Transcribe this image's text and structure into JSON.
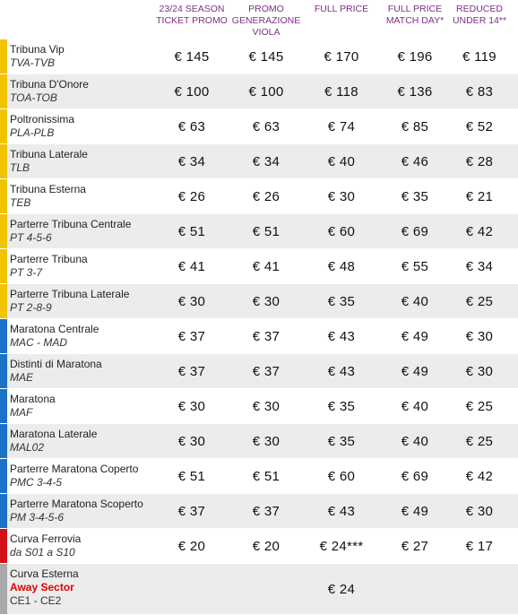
{
  "headers": [
    {
      "lines": [
        "23/24 SEASON",
        "TICKET PROMO"
      ]
    },
    {
      "lines": [
        "PROMO",
        "GENERAZIONE",
        "VIOLA"
      ]
    },
    {
      "lines": [
        "FULL PRICE"
      ]
    },
    {
      "lines": [
        "FULL PRICE",
        "MATCH DAY*"
      ]
    },
    {
      "lines": [
        "REDUCED",
        "UNDER 14**"
      ]
    }
  ],
  "colors": {
    "yellow": "#f2c300",
    "blue": "#1a73c7",
    "red": "#d2121a",
    "gray": "#a9a9a9"
  },
  "rows": [
    {
      "name": "Tribuna Vip",
      "code": "TVA-TVB",
      "color": "yellow",
      "prices": [
        "€ 145",
        "€ 145",
        "€ 170",
        "€ 196",
        "€ 119"
      ]
    },
    {
      "name": "Tribuna D'Onore",
      "code": "TOA-TOB",
      "color": "yellow",
      "prices": [
        "€ 100",
        "€ 100",
        "€ 118",
        "€ 136",
        "€ 83"
      ]
    },
    {
      "name": "Poltronissima",
      "code": "PLA-PLB",
      "color": "yellow",
      "prices": [
        "€ 63",
        "€ 63",
        "€ 74",
        "€ 85",
        "€ 52"
      ]
    },
    {
      "name": "Tribuna Laterale",
      "code": "TLB",
      "color": "yellow",
      "prices": [
        "€ 34",
        "€ 34",
        "€ 40",
        "€ 46",
        "€ 28"
      ]
    },
    {
      "name": "Tribuna Esterna",
      "code": "TEB",
      "color": "yellow",
      "prices": [
        "€ 26",
        "€ 26",
        "€ 30",
        "€ 35",
        "€ 21"
      ]
    },
    {
      "name": "Parterre Tribuna Centrale",
      "code": "PT 4-5-6",
      "color": "yellow",
      "prices": [
        "€ 51",
        "€ 51",
        "€ 60",
        "€ 69",
        "€ 42"
      ]
    },
    {
      "name": "Parterre Tribuna",
      "code": "PT 3-7",
      "color": "yellow",
      "prices": [
        "€ 41",
        "€ 41",
        "€ 48",
        "€ 55",
        "€ 34"
      ]
    },
    {
      "name": "Parterre Tribuna Laterale",
      "code": "PT 2-8-9",
      "color": "yellow",
      "prices": [
        "€ 30",
        "€ 30",
        "€ 35",
        "€ 40",
        "€ 25"
      ]
    },
    {
      "name": "Maratona Centrale",
      "code": "MAC - MAD",
      "color": "blue",
      "prices": [
        "€ 37",
        "€ 37",
        "€ 43",
        "€ 49",
        "€ 30"
      ]
    },
    {
      "name": "Distinti di Maratona",
      "code": "MAE",
      "color": "blue",
      "prices": [
        "€ 37",
        "€ 37",
        "€ 43",
        "€ 49",
        "€ 30"
      ]
    },
    {
      "name": "Maratona",
      "code": "MAF",
      "color": "blue",
      "prices": [
        "€ 30",
        "€ 30",
        "€ 35",
        "€ 40",
        "€ 25"
      ]
    },
    {
      "name": "Maratona Laterale",
      "code": "MAL02",
      "color": "blue",
      "prices": [
        "€ 30",
        "€ 30",
        "€ 35",
        "€ 40",
        "€ 25"
      ]
    },
    {
      "name": "Parterre Maratona Coperto",
      "code": "PMC 3-4-5",
      "color": "blue",
      "prices": [
        "€ 51",
        "€ 51",
        "€ 60",
        "€ 69",
        "€ 42"
      ]
    },
    {
      "name": "Parterre Maratona Scoperto",
      "code": "PM 3-4-5-6",
      "color": "blue",
      "prices": [
        "€ 37",
        "€ 37",
        "€ 43",
        "€ 49",
        "€ 30"
      ]
    },
    {
      "name": "Curva Ferrovia",
      "code": "da S01 a S10",
      "color": "red",
      "prices": [
        "€ 20",
        "€ 20",
        "€ 24***",
        "€ 27",
        "€ 17"
      ]
    },
    {
      "name": "Curva Esterna",
      "away": "Away Sector",
      "code": "CE1 - CE2",
      "color": "gray",
      "prices": [
        "",
        "",
        "€ 24",
        "",
        ""
      ],
      "last": true
    }
  ]
}
